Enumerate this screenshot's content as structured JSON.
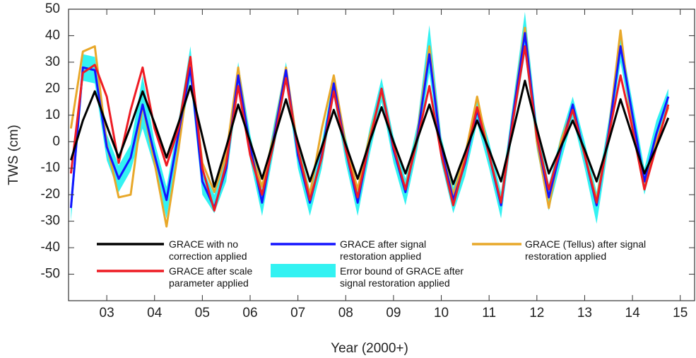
{
  "chart_data": {
    "type": "line",
    "x_label": "Year (2000+)",
    "y_label": "TWS (cm)",
    "xlim": [
      2.2,
      15.3
    ],
    "ylim": [
      -60,
      50
    ],
    "xticks": [
      {
        "value": 3,
        "label": "03"
      },
      {
        "value": 4,
        "label": "04"
      },
      {
        "value": 5,
        "label": "05"
      },
      {
        "value": 6,
        "label": "06"
      },
      {
        "value": 7,
        "label": "07"
      },
      {
        "value": 8,
        "label": "08"
      },
      {
        "value": 9,
        "label": "09"
      },
      10,
      11,
      12,
      13,
      14,
      15
    ],
    "yticks": [
      -50,
      -40,
      -30,
      -20,
      -10,
      0,
      10,
      20,
      30,
      40,
      50
    ],
    "grid": false,
    "x": [
      2.25,
      2.5,
      2.75,
      3.0,
      3.25,
      3.5,
      3.75,
      4.0,
      4.25,
      4.5,
      4.75,
      5.0,
      5.25,
      5.5,
      5.75,
      6.0,
      6.25,
      6.5,
      6.75,
      7.0,
      7.25,
      7.5,
      7.75,
      8.0,
      8.25,
      8.5,
      8.75,
      9.0,
      9.25,
      9.5,
      9.75,
      10.0,
      10.25,
      10.5,
      10.75,
      11.0,
      11.25,
      11.5,
      11.75,
      12.0,
      12.25,
      12.5,
      12.75,
      13.0,
      13.25,
      13.5,
      13.75,
      14.0,
      14.25,
      14.5,
      14.75
    ],
    "error_band": {
      "name": "Error bound of GRACE after signal restoration applied",
      "color": "#33f2f2",
      "upper": [
        -20,
        33,
        32,
        3,
        -9,
        -1,
        25,
        0,
        -17,
        8,
        36,
        -10,
        -20,
        -5,
        30,
        3,
        -18,
        7,
        30,
        0,
        -18,
        0,
        25,
        2,
        -18,
        5,
        24,
        2,
        -14,
        7,
        44,
        2,
        -17,
        -3,
        16,
        0,
        -19,
        15,
        49,
        7,
        -16,
        2,
        17,
        0,
        -19,
        8,
        40,
        15,
        -10,
        8,
        20
      ],
      "lower": [
        -30,
        23,
        22,
        -7,
        -19,
        -11,
        5,
        -10,
        -29,
        -2,
        23,
        -20,
        -27,
        -15,
        20,
        -7,
        -28,
        -3,
        22,
        -10,
        -28,
        -10,
        17,
        -8,
        -28,
        -5,
        15,
        -8,
        -24,
        -3,
        26,
        -8,
        -27,
        -13,
        7,
        -10,
        -29,
        5,
        33,
        -3,
        -26,
        -8,
        9,
        -10,
        -31,
        -2,
        30,
        5,
        -20,
        -2,
        14
      ]
    },
    "series": [
      {
        "name": "GRACE with no correction applied",
        "color": "#000000",
        "values": [
          -7,
          8,
          19,
          6,
          -6,
          6,
          19,
          7,
          -6,
          7,
          21,
          2,
          -17,
          -2,
          14,
          0,
          -14,
          1,
          16,
          0,
          -15,
          -2,
          12,
          -1,
          -14,
          0,
          13,
          0,
          -12,
          1,
          14,
          -1,
          -16,
          -4,
          8,
          -3,
          -15,
          4,
          23,
          5,
          -12,
          -2,
          8,
          -3,
          -15,
          0,
          16,
          2,
          -12,
          -2,
          9
        ]
      },
      {
        "name": "GRACE after scale parameter applied",
        "color": "#ee1c24",
        "values": [
          -12,
          26,
          29,
          17,
          -8,
          12,
          28,
          5,
          -9,
          5,
          32,
          -10,
          -26,
          -8,
          21,
          -5,
          -20,
          0,
          24,
          -3,
          -22,
          -6,
          19,
          -3,
          -21,
          0,
          20,
          -2,
          -18,
          1,
          21,
          -5,
          -24,
          -7,
          13,
          -5,
          -23,
          8,
          36,
          2,
          -18,
          -2,
          12,
          -5,
          -23,
          2,
          25,
          5,
          -18,
          -2,
          14
        ]
      },
      {
        "name": "GRACE after signal restoration applied",
        "color": "#1414ff",
        "values": [
          -25,
          28,
          27,
          -2,
          -14,
          -6,
          14,
          -5,
          -22,
          3,
          28,
          -15,
          -25,
          -10,
          25,
          -2,
          -23,
          2,
          27,
          -5,
          -23,
          -5,
          22,
          -3,
          -23,
          0,
          20,
          -3,
          -19,
          2,
          33,
          -3,
          -22,
          -8,
          12,
          -5,
          -24,
          10,
          41,
          2,
          -21,
          -3,
          14,
          -5,
          -24,
          3,
          36,
          10,
          -15,
          3,
          17
        ]
      },
      {
        "name": "GRACE (Tellus) after signal restoration applied",
        "color": "#e8a82a",
        "values": [
          5,
          34,
          36,
          -1,
          -21,
          -20,
          14,
          -8,
          -32,
          -3,
          30,
          -8,
          -19,
          -5,
          28,
          -3,
          -17,
          3,
          28,
          -3,
          -20,
          5,
          25,
          -1,
          -18,
          2,
          19,
          -2,
          -18,
          3,
          36,
          -3,
          -20,
          -5,
          17,
          -5,
          -23,
          10,
          43,
          0,
          -25,
          0,
          13,
          -5,
          -22,
          3,
          42,
          5,
          -18,
          0,
          13
        ]
      }
    ]
  }
}
